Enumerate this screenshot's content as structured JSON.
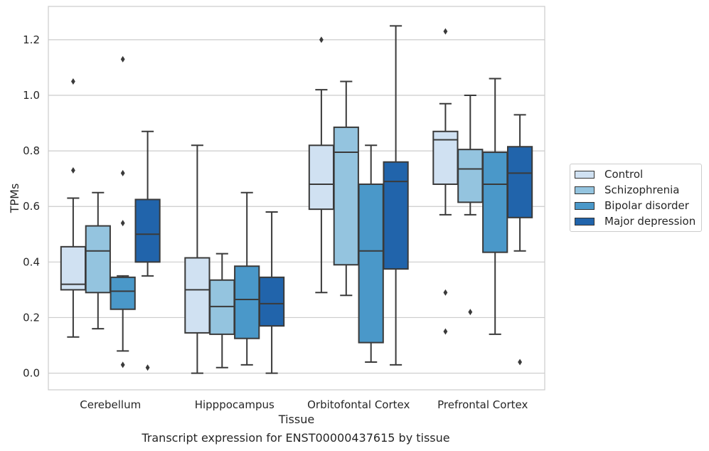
{
  "caption": "Transcript expression for ENST00000437615 by tissue",
  "chart_data": {
    "type": "box",
    "xlabel": "Tissue",
    "ylabel": "TPMs",
    "ylim": [
      -0.06,
      1.32
    ],
    "yticks": [
      "0.0",
      "0.2",
      "0.4",
      "0.6",
      "0.8",
      "1.0",
      "1.2"
    ],
    "ytick_values": [
      0.0,
      0.2,
      0.4,
      0.6,
      0.8,
      1.0,
      1.2
    ],
    "grid": "horizontal",
    "legend_position": "right",
    "categories": [
      "Cerebellum",
      "Hipppocampus",
      "Orbitofontal Cortex",
      "Prefrontal Cortex"
    ],
    "series": [
      {
        "name": "Control",
        "color": "#d0e1f2",
        "boxes": [
          {
            "q1": 0.3,
            "median": 0.32,
            "q3": 0.455,
            "whislo": 0.13,
            "whishi": 0.63,
            "fliers": [
              0.73,
              1.05
            ]
          },
          {
            "q1": 0.145,
            "median": 0.3,
            "q3": 0.415,
            "whislo": 0.0,
            "whishi": 0.82,
            "fliers": []
          },
          {
            "q1": 0.59,
            "median": 0.68,
            "q3": 0.82,
            "whislo": 0.29,
            "whishi": 1.02,
            "fliers": [
              1.2
            ]
          },
          {
            "q1": 0.68,
            "median": 0.84,
            "q3": 0.87,
            "whislo": 0.57,
            "whishi": 0.97,
            "fliers": [
              0.29,
              0.15,
              1.23
            ]
          }
        ]
      },
      {
        "name": "Schizophrenia",
        "color": "#94c4df",
        "boxes": [
          {
            "q1": 0.29,
            "median": 0.44,
            "q3": 0.53,
            "whislo": 0.16,
            "whishi": 0.65,
            "fliers": []
          },
          {
            "q1": 0.14,
            "median": 0.24,
            "q3": 0.335,
            "whislo": 0.02,
            "whishi": 0.43,
            "fliers": []
          },
          {
            "q1": 0.39,
            "median": 0.795,
            "q3": 0.885,
            "whislo": 0.28,
            "whishi": 1.05,
            "fliers": []
          },
          {
            "q1": 0.615,
            "median": 0.735,
            "q3": 0.805,
            "whislo": 0.57,
            "whishi": 1.0,
            "fliers": [
              0.22
            ]
          }
        ]
      },
      {
        "name": "Bipolar disorder",
        "color": "#4a98c9",
        "boxes": [
          {
            "q1": 0.23,
            "median": 0.295,
            "q3": 0.345,
            "whislo": 0.08,
            "whishi": 0.35,
            "fliers": [
              0.54,
              0.72,
              1.13,
              0.03
            ]
          },
          {
            "q1": 0.125,
            "median": 0.265,
            "q3": 0.385,
            "whislo": 0.03,
            "whishi": 0.65,
            "fliers": []
          },
          {
            "q1": 0.11,
            "median": 0.44,
            "q3": 0.68,
            "whislo": 0.04,
            "whishi": 0.82,
            "fliers": []
          },
          {
            "q1": 0.435,
            "median": 0.68,
            "q3": 0.795,
            "whislo": 0.14,
            "whishi": 1.06,
            "fliers": []
          }
        ]
      },
      {
        "name": "Major depression",
        "color": "#2164ab",
        "boxes": [
          {
            "q1": 0.4,
            "median": 0.5,
            "q3": 0.625,
            "whislo": 0.35,
            "whishi": 0.87,
            "fliers": [
              0.02
            ]
          },
          {
            "q1": 0.17,
            "median": 0.25,
            "q3": 0.345,
            "whislo": 0.0,
            "whishi": 0.58,
            "fliers": []
          },
          {
            "q1": 0.375,
            "median": 0.69,
            "q3": 0.76,
            "whislo": 0.03,
            "whishi": 1.25,
            "fliers": []
          },
          {
            "q1": 0.56,
            "median": 0.72,
            "q3": 0.815,
            "whislo": 0.44,
            "whishi": 0.93,
            "fliers": [
              0.04
            ]
          }
        ]
      }
    ]
  }
}
